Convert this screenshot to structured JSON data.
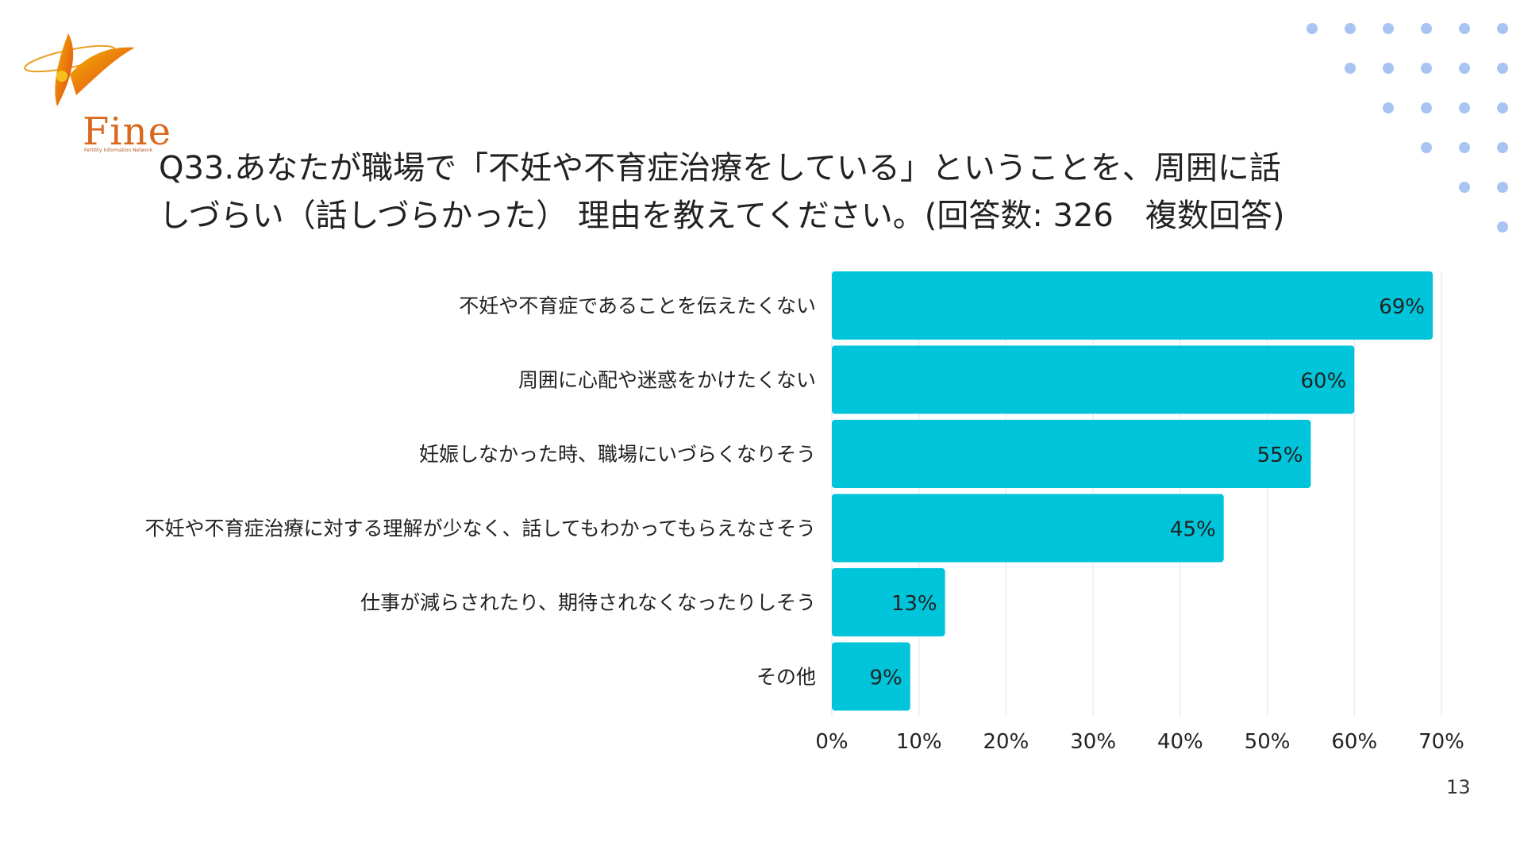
{
  "logo": {
    "text": "Fine",
    "subtext": "Fertility Information Network"
  },
  "title_line1": "Q33.あなたが職場で「不妊や不育症治療をしている」ということを、周囲に話",
  "title_line2": "しづらい（話しづらかった） 理由を教えてください。(回答数: 326　複数回答)",
  "page_number": "13",
  "colors": {
    "bar": "#00c5da",
    "accent_dots": "#a9c4f3",
    "logo": "#e07a1f"
  },
  "chart_data": {
    "type": "bar",
    "orientation": "horizontal",
    "title": "",
    "xlabel": "",
    "ylabel": "",
    "categories": [
      "不妊や不育症であることを伝えたくない",
      "周囲に心配や迷惑をかけたくない",
      "妊娠しなかった時、職場にいづらくなりそう",
      "不妊や不育症治療に対する理解が少なく、話してもわかってもらえなさそう",
      "仕事が減らされたり、期待されなくなったりしそう",
      "その他"
    ],
    "values": [
      69,
      60,
      55,
      45,
      13,
      9
    ],
    "value_labels": [
      "69%",
      "60%",
      "55%",
      "45%",
      "13%",
      "9%"
    ],
    "xlim": [
      0,
      70
    ],
    "xticks": [
      "0%",
      "10%",
      "20%",
      "30%",
      "40%",
      "50%",
      "60%",
      "70%"
    ],
    "grid": true,
    "legend": "none"
  }
}
